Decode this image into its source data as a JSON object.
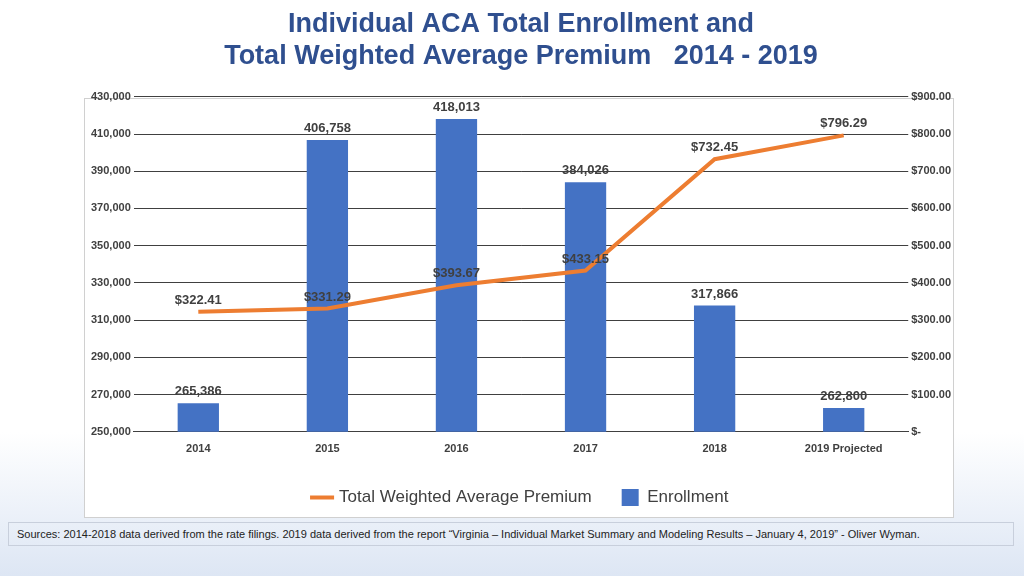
{
  "chart_data": {
    "type": "bar",
    "title": [
      "Individual ACA Total Enrollment and",
      "Total Weighted Average Premium   2014 - 2019"
    ],
    "source": "Sources:  2014-2018 data derived from the rate filings.  2019 data derived from the report “Virginia – Individual Market Summary and Modeling Results – January 4, 2019” - Oliver Wyman.",
    "categories": [
      "2014",
      "2015",
      "2016",
      "2017",
      "2018",
      "2019 Projected"
    ],
    "series": [
      {
        "name": "Enrollment",
        "type": "bar",
        "color": "#4472c4",
        "values": [
          265386,
          406758,
          418013,
          384026,
          317866,
          262800
        ],
        "value_labels": [
          "265,386",
          "406,758",
          "418,013",
          "384,026",
          "317,866",
          "262,800"
        ]
      },
      {
        "name": "Total Weighted Average Premium",
        "type": "line",
        "color": "#ed7d31",
        "axis": "y2",
        "values": [
          322.41,
          331.29,
          393.67,
          433.15,
          732.45,
          796.29
        ],
        "value_labels": [
          "$322.41",
          "$331.29",
          "$393.67",
          "$433.15",
          "$732.45",
          "$796.29"
        ]
      }
    ],
    "ylim": [
      250000,
      430000
    ],
    "yticks": [
      {
        "value": 250000,
        "label": "250,000"
      },
      {
        "value": 270000,
        "label": "270,000"
      },
      {
        "value": 290000,
        "label": "290,000"
      },
      {
        "value": 310000,
        "label": "310,000"
      },
      {
        "value": 330000,
        "label": "330,000"
      },
      {
        "value": 350000,
        "label": "350,000"
      },
      {
        "value": 370000,
        "label": "370,000"
      },
      {
        "value": 390000,
        "label": "390,000"
      },
      {
        "value": 410000,
        "label": "410,000"
      },
      {
        "value": 430000,
        "label": "430,000"
      }
    ],
    "y2lim": [
      0,
      900
    ],
    "y2ticks": [
      {
        "value": 0,
        "label": "$-"
      },
      {
        "value": 100,
        "label": "$100.00"
      },
      {
        "value": 200,
        "label": "$200.00"
      },
      {
        "value": 300,
        "label": "$300.00"
      },
      {
        "value": 400,
        "label": "$400.00"
      },
      {
        "value": 500,
        "label": "$500.00"
      },
      {
        "value": 600,
        "label": "$600.00"
      },
      {
        "value": 700,
        "label": "$700.00"
      },
      {
        "value": 800,
        "label": "$800.00"
      },
      {
        "value": 900,
        "label": "$900.00"
      }
    ],
    "grid": true,
    "legend": "bottom",
    "data_labels": true
  }
}
